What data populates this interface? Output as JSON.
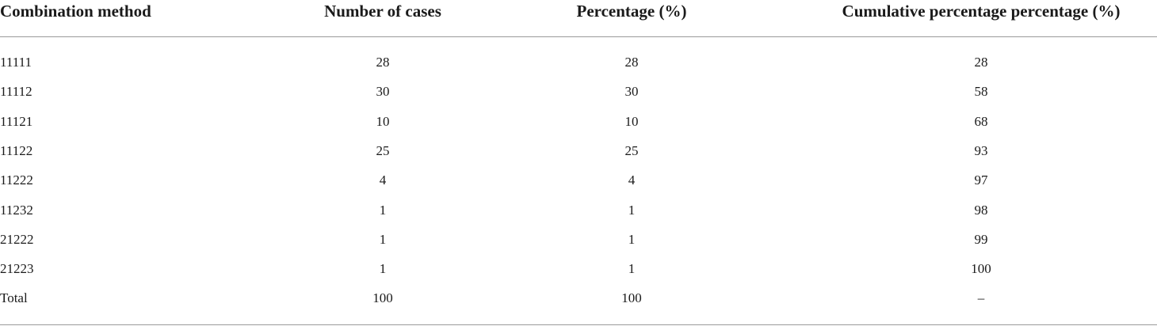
{
  "table": {
    "header": [
      "Combination method",
      "Number of cases",
      "Percentage (%)",
      "Cumulative percentage percentage (%)"
    ],
    "rows": [
      [
        "11111",
        "28",
        "28",
        "28"
      ],
      [
        "11112",
        "30",
        "30",
        "58"
      ],
      [
        "11121",
        "10",
        "10",
        "68"
      ],
      [
        "11122",
        "25",
        "25",
        "93"
      ],
      [
        "11222",
        "4",
        "4",
        "97"
      ],
      [
        "11232",
        "1",
        "1",
        "98"
      ],
      [
        "21222",
        "1",
        "1",
        "99"
      ],
      [
        "21223",
        "1",
        "1",
        "100"
      ],
      [
        "Total",
        "100",
        "100",
        "–"
      ]
    ]
  }
}
